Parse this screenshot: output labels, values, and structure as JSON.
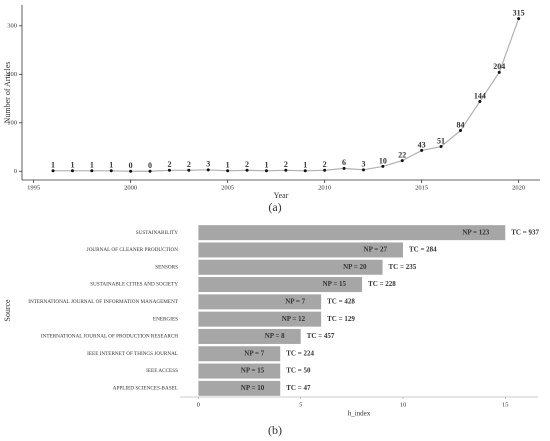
{
  "chart_data": [
    {
      "type": "line",
      "x": [
        1996,
        1997,
        1998,
        1999,
        2000,
        2001,
        2002,
        2003,
        2004,
        2005,
        2006,
        2007,
        2008,
        2009,
        2010,
        2011,
        2012,
        2013,
        2014,
        2015,
        2016,
        2017,
        2018,
        2019,
        2020
      ],
      "values": [
        1,
        1,
        1,
        1,
        0,
        0,
        2,
        2,
        3,
        1,
        2,
        1,
        2,
        1,
        2,
        6,
        3,
        10,
        22,
        43,
        51,
        84,
        144,
        204,
        315
      ],
      "color": "#b0b0b0",
      "xlim": [
        1994.4,
        2021.1
      ],
      "xticks": [
        1995,
        2000,
        2005,
        2010,
        2015,
        2020
      ],
      "ylim": [
        -18,
        343
      ],
      "yticks": [
        0,
        100,
        200,
        300
      ],
      "xlabel": "Year",
      "ylabel": "Number of Articles",
      "caption": "(a)"
    },
    {
      "type": "bar",
      "orientation": "horizontal",
      "categories": [
        "SUSTAINABILITY",
        "JOURNAL OF CLEANER PRODUCTION",
        "SENSORS",
        "SUSTAINABLE CITIES AND SOCIETY",
        "INTERNATIONAL JOURNAL OF INFORMATION MANAGEMENT",
        "ENERGIES",
        "INTERNATIONAL JOURNAL OF PRODUCTION RESEARCH",
        "IEEE INTERNET OF THINGS JOURNAL",
        "IEEE ACCESS",
        "APPLIED SCIENCES-BASEL"
      ],
      "values": [
        15,
        10,
        9,
        8,
        6,
        6,
        5,
        4,
        4,
        4
      ],
      "np_labels": [
        "NP = 123",
        "NP = 27",
        "NP = 20",
        "NP = 15",
        "NP = 7",
        "NP = 12",
        "NP = 8",
        "NP = 7",
        "NP = 15",
        "NP = 10"
      ],
      "tc_labels": [
        "TC = 937",
        "TC = 284",
        "TC = 235",
        "TC = 228",
        "TC = 428",
        "TC = 129",
        "TC = 457",
        "TC = 224",
        "TC = 50",
        "TC = 47"
      ],
      "color": "#a6a6a6",
      "xlim": [
        -0.9,
        16.6
      ],
      "xticks": [
        0,
        5,
        10,
        15
      ],
      "xlabel": "h_index",
      "ylabel": "Source",
      "caption": "(b)"
    }
  ]
}
